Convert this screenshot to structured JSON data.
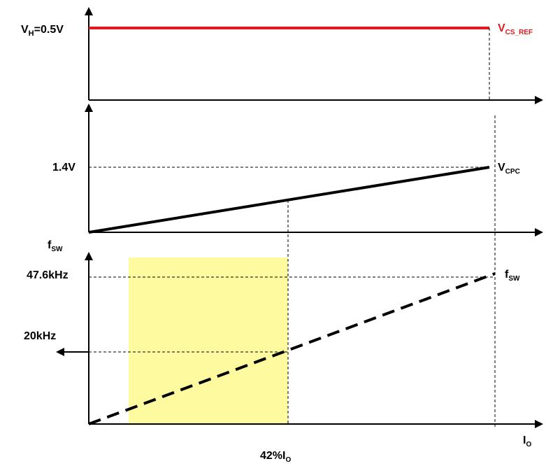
{
  "panel1": {
    "y_label_main": "V",
    "y_label_sub": "H",
    "y_label_value": "=0.5V",
    "series_label_main": "V",
    "series_label_sub": "CS_REF",
    "series_color": "#e0191c"
  },
  "panel2": {
    "y_tick": "1.4V",
    "series_label_main": "V",
    "series_label_sub": "CPC"
  },
  "panel3": {
    "y_axis_label_main": "f",
    "y_axis_label_sub": "SW",
    "y_tick_max": "47.6kHz",
    "y_tick_mid": "20kHz",
    "series_label_main": "f",
    "series_label_sub": "SW",
    "x_axis_label_main": "I",
    "x_axis_label_sub": "O",
    "marker_label_main": "42%I",
    "marker_label_sub": "O",
    "region_color": "#fdfaa0"
  }
}
